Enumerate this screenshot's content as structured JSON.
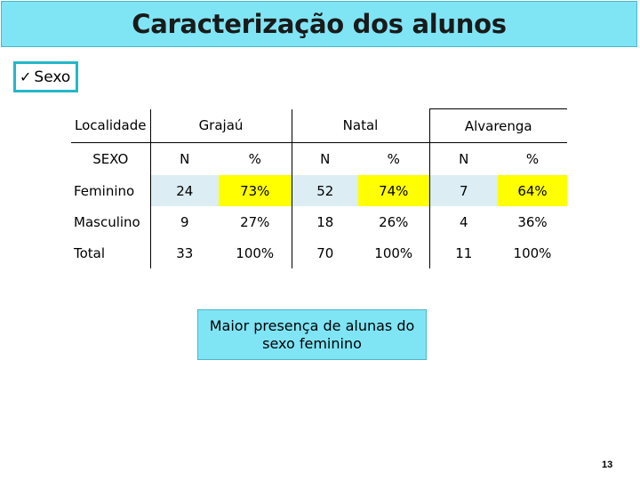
{
  "title": "Caracterização dos alunos",
  "bullet": {
    "check": "✓",
    "label": "Sexo"
  },
  "table": {
    "header": {
      "localidade": "Localidade",
      "groups": [
        "Grajaú",
        "Natal",
        "Alvarenga"
      ]
    },
    "subheader": {
      "sexo": "SEXO",
      "cols": [
        "N",
        "%",
        "N",
        "%",
        "N",
        "%"
      ]
    },
    "rows": [
      {
        "label": "Feminino",
        "values": [
          "24",
          "73%",
          "52",
          "74%",
          "7",
          "64%"
        ]
      },
      {
        "label": "Masculino",
        "values": [
          "9",
          "27%",
          "18",
          "26%",
          "4",
          "36%"
        ]
      },
      {
        "label": "Total",
        "values": [
          "33",
          "100%",
          "70",
          "100%",
          "11",
          "100%"
        ]
      }
    ]
  },
  "callout": "Maior presença de alunas do sexo feminino",
  "page_number": "13",
  "colors": {
    "title_bg": "#7fe5f5",
    "highlight_yellow": "#ffff00",
    "highlight_blue": "#dcedf3",
    "bullet_border": "#24b7c8"
  }
}
